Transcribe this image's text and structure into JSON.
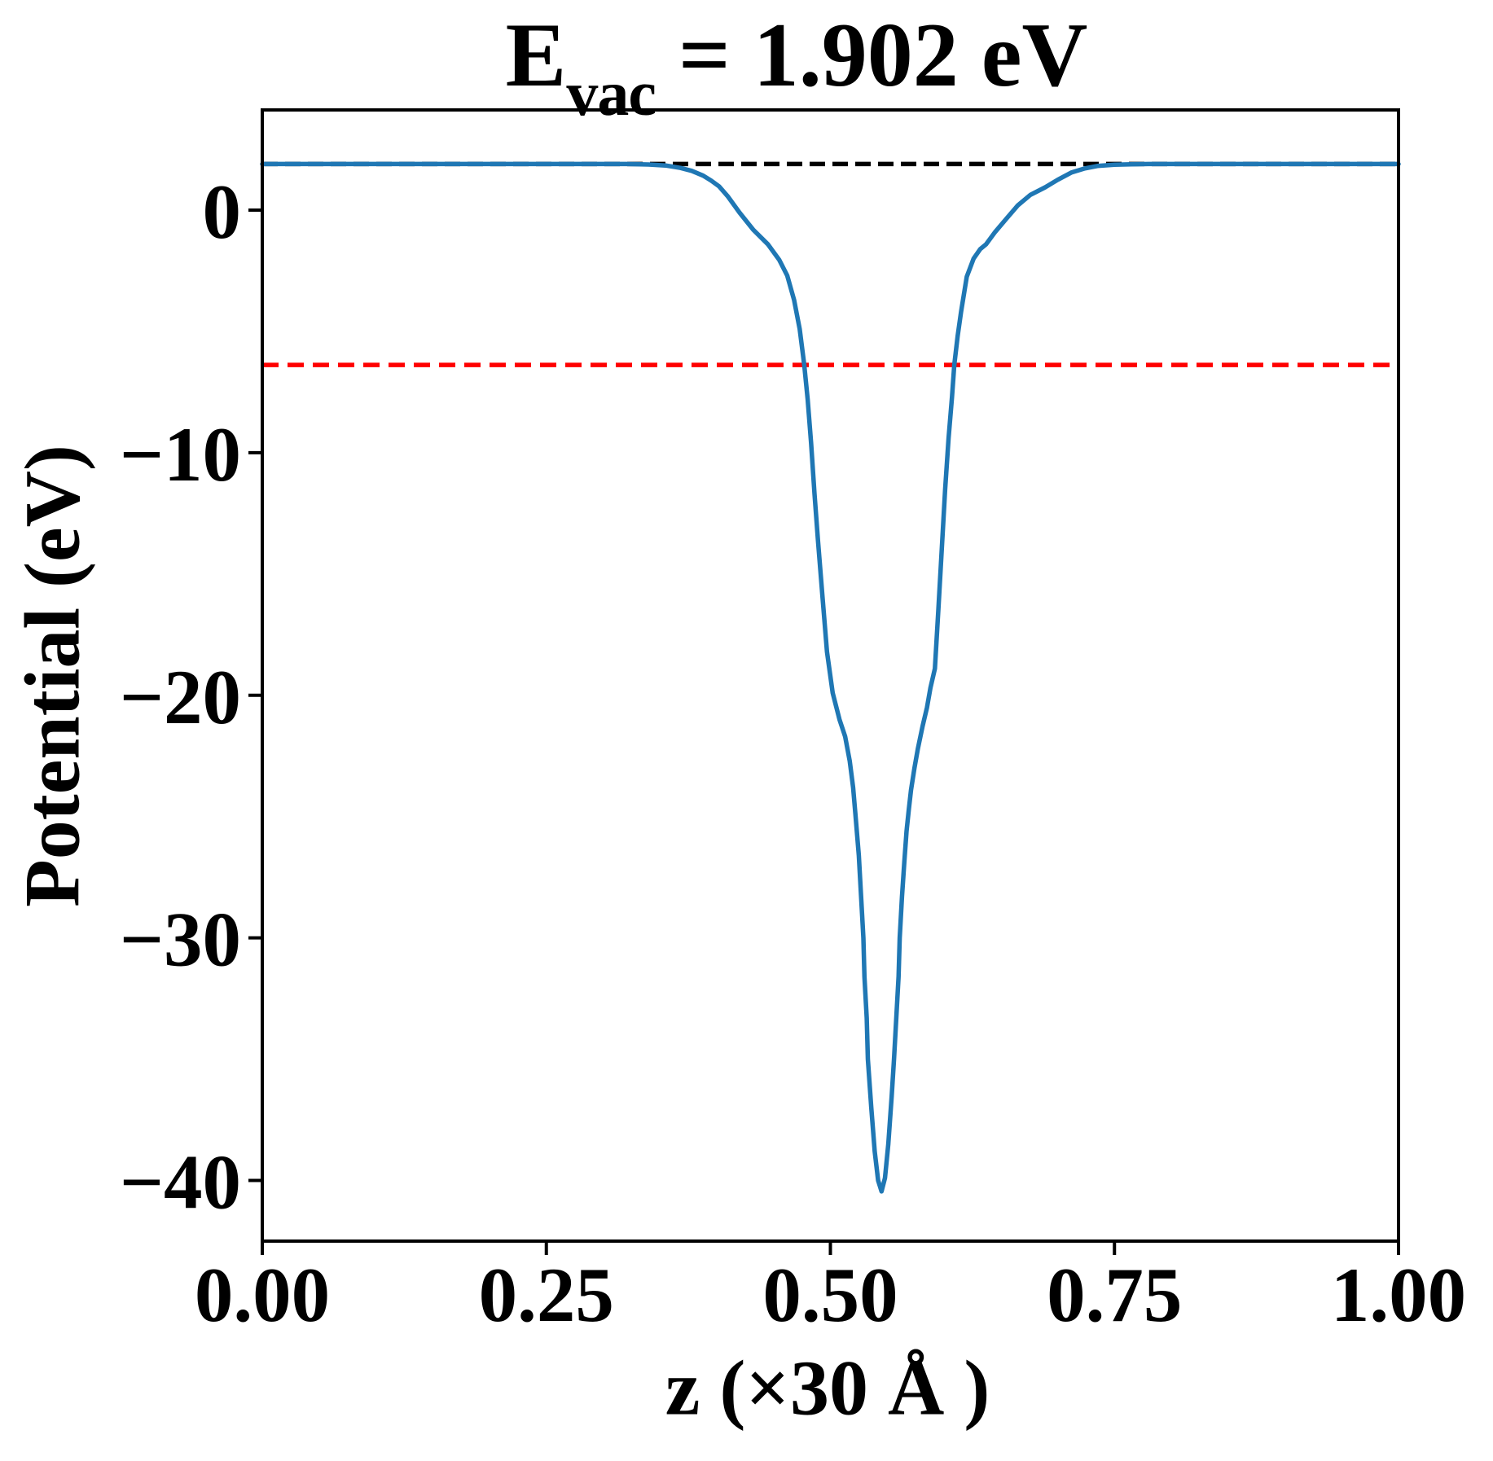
{
  "title": {
    "base": "E",
    "subscript": "vac",
    "rest": " = 1.902 eV"
  },
  "axes": {
    "ylabel": "Potential (eV)",
    "xlabel": "z (×30 Å )"
  },
  "chart_data": {
    "type": "line",
    "title": "E_vac = 1.902 eV",
    "xlabel": "z (×30 Å )",
    "ylabel": "Potential (eV)",
    "xlim": [
      0.0,
      1.0
    ],
    "ylim": [
      -42.5,
      4.13
    ],
    "xticks": [
      0.0,
      0.25,
      0.5,
      0.75,
      1.0
    ],
    "xtick_labels": [
      "0.00",
      "0.25",
      "0.50",
      "0.75",
      "1.00"
    ],
    "yticks": [
      0,
      -10,
      -20,
      -30,
      -40
    ],
    "ytick_labels": [
      "0",
      "−10",
      "−20",
      "−30",
      "−40"
    ],
    "grid": false,
    "legend": "none",
    "annotations": {
      "E_vac_eV": 1.902
    },
    "hlines": [
      {
        "id": "vacuum-level-line",
        "y": 1.902,
        "color": "#000000",
        "style": "dashed",
        "dash": [
          19,
          9
        ],
        "width": 5.5
      },
      {
        "id": "reference-level-line",
        "y": -6.38,
        "color": "#ff0000",
        "style": "dashed",
        "dash": [
          20,
          11
        ],
        "width": 5.5
      }
    ],
    "series": [
      {
        "id": "potential-curve",
        "color": "#1f77b4",
        "style": "solid",
        "width": 5.5,
        "points": [
          [
            0.0,
            1.902
          ],
          [
            0.05,
            1.902
          ],
          [
            0.1,
            1.902
          ],
          [
            0.15,
            1.902
          ],
          [
            0.2,
            1.902
          ],
          [
            0.25,
            1.902
          ],
          [
            0.3,
            1.902
          ],
          [
            0.32,
            1.9
          ],
          [
            0.34,
            1.88
          ],
          [
            0.355,
            1.84
          ],
          [
            0.368,
            1.74
          ],
          [
            0.378,
            1.62
          ],
          [
            0.388,
            1.42
          ],
          [
            0.395,
            1.22
          ],
          [
            0.402,
            0.98
          ],
          [
            0.41,
            0.55
          ],
          [
            0.42,
            -0.1
          ],
          [
            0.432,
            -0.8
          ],
          [
            0.445,
            -1.41
          ],
          [
            0.455,
            -2.05
          ],
          [
            0.462,
            -2.7
          ],
          [
            0.468,
            -3.7
          ],
          [
            0.473,
            -4.9
          ],
          [
            0.477,
            -6.38
          ],
          [
            0.48,
            -7.8
          ],
          [
            0.483,
            -9.6
          ],
          [
            0.486,
            -11.7
          ],
          [
            0.489,
            -13.6
          ],
          [
            0.493,
            -15.9
          ],
          [
            0.497,
            -18.2
          ],
          [
            0.502,
            -19.9
          ],
          [
            0.508,
            -21.0
          ],
          [
            0.513,
            -21.7
          ],
          [
            0.517,
            -22.7
          ],
          [
            0.52,
            -23.8
          ],
          [
            0.522,
            -24.9
          ],
          [
            0.525,
            -26.6
          ],
          [
            0.527,
            -28.3
          ],
          [
            0.529,
            -30.0
          ],
          [
            0.53,
            -31.6
          ],
          [
            0.532,
            -33.3
          ],
          [
            0.533,
            -35.0
          ],
          [
            0.536,
            -37.0
          ],
          [
            0.539,
            -38.8
          ],
          [
            0.542,
            -40.0
          ],
          [
            0.545,
            -40.45
          ],
          [
            0.548,
            -39.9
          ],
          [
            0.551,
            -38.5
          ],
          [
            0.554,
            -36.5
          ],
          [
            0.556,
            -35.0
          ],
          [
            0.558,
            -33.3
          ],
          [
            0.56,
            -31.6
          ],
          [
            0.561,
            -30.0
          ],
          [
            0.563,
            -28.3
          ],
          [
            0.565,
            -26.9
          ],
          [
            0.567,
            -25.6
          ],
          [
            0.569,
            -24.7
          ],
          [
            0.571,
            -23.9
          ],
          [
            0.574,
            -23.0
          ],
          [
            0.577,
            -22.2
          ],
          [
            0.581,
            -21.3
          ],
          [
            0.585,
            -20.5
          ],
          [
            0.588,
            -19.7
          ],
          [
            0.592,
            -18.9
          ],
          [
            0.595,
            -16.5
          ],
          [
            0.598,
            -14.0
          ],
          [
            0.601,
            -11.5
          ],
          [
            0.604,
            -9.4
          ],
          [
            0.607,
            -7.7
          ],
          [
            0.609,
            -6.38
          ],
          [
            0.612,
            -5.2
          ],
          [
            0.615,
            -4.2
          ],
          [
            0.62,
            -2.75
          ],
          [
            0.626,
            -2.0
          ],
          [
            0.632,
            -1.6
          ],
          [
            0.637,
            -1.41
          ],
          [
            0.645,
            -0.9
          ],
          [
            0.655,
            -0.35
          ],
          [
            0.665,
            0.2
          ],
          [
            0.676,
            0.63
          ],
          [
            0.689,
            0.94
          ],
          [
            0.7,
            1.25
          ],
          [
            0.712,
            1.55
          ],
          [
            0.724,
            1.72
          ],
          [
            0.735,
            1.82
          ],
          [
            0.75,
            1.87
          ],
          [
            0.765,
            1.89
          ],
          [
            0.78,
            1.9
          ],
          [
            0.8,
            1.902
          ],
          [
            0.85,
            1.902
          ],
          [
            0.9,
            1.902
          ],
          [
            0.95,
            1.902
          ],
          [
            1.0,
            1.902
          ]
        ]
      }
    ],
    "frame_color": "#000000",
    "background": "#ffffff"
  }
}
